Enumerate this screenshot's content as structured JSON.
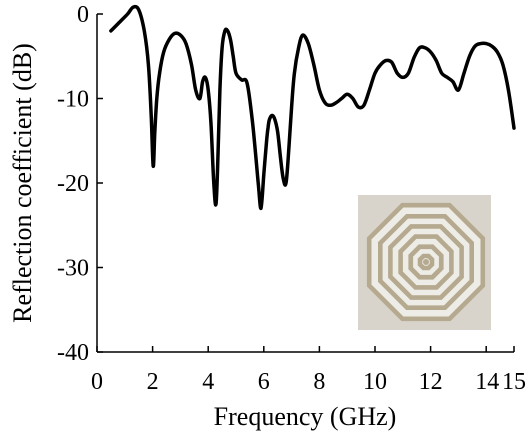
{
  "chart_data": {
    "type": "line",
    "title": "",
    "xlabel": "Frequency (GHz)",
    "ylabel": "Reflection coefficient (dB)",
    "xlim": [
      0,
      15
    ],
    "ylim": [
      -40,
      0
    ],
    "x_ticks": [
      0,
      2,
      4,
      6,
      8,
      10,
      12,
      14,
      15
    ],
    "x_tick_labels": [
      "0",
      "2",
      "4",
      "6",
      "8",
      "10",
      "12",
      "14",
      "15"
    ],
    "y_ticks": [
      0,
      -10,
      -20,
      -30,
      -40
    ],
    "y_tick_labels": [
      "0",
      "-10",
      "-20",
      "-30",
      "-40"
    ],
    "grid": false,
    "series": [
      {
        "line_color": "#000000",
        "x": [
          0.5,
          0.8,
          1.1,
          1.3,
          1.5,
          1.7,
          1.85,
          1.95,
          2.02,
          2.08,
          2.15,
          2.25,
          2.4,
          2.6,
          2.8,
          3.0,
          3.2,
          3.4,
          3.55,
          3.7,
          3.8,
          3.9,
          4.0,
          4.1,
          4.2,
          4.28,
          4.35,
          4.42,
          4.5,
          4.6,
          4.7,
          4.8,
          4.9,
          5.0,
          5.2,
          5.4,
          5.6,
          5.8,
          5.9,
          6.0,
          6.1,
          6.15,
          6.2,
          6.3,
          6.4,
          6.5,
          6.6,
          6.7,
          6.8,
          6.9,
          7.0,
          7.1,
          7.25,
          7.4,
          7.6,
          7.8,
          8.0,
          8.2,
          8.4,
          8.6,
          8.8,
          9.0,
          9.2,
          9.4,
          9.6,
          9.8,
          10.0,
          10.2,
          10.4,
          10.6,
          10.8,
          11.0,
          11.2,
          11.4,
          11.6,
          11.8,
          12.0,
          12.2,
          12.4,
          12.6,
          12.8,
          13.0,
          13.2,
          13.4,
          13.6,
          13.8,
          14.0,
          14.2,
          14.4,
          14.6,
          14.8,
          15.0
        ],
        "y": [
          -2,
          -1,
          0,
          0.8,
          0.5,
          -2,
          -6,
          -12,
          -18,
          -14,
          -10,
          -7,
          -4.5,
          -3,
          -2.3,
          -2.5,
          -3.5,
          -6,
          -9,
          -10,
          -8,
          -7.5,
          -9,
          -13,
          -20,
          -22.5,
          -17,
          -9,
          -4,
          -2,
          -2,
          -3,
          -5,
          -7,
          -7.8,
          -8.2,
          -13,
          -20,
          -23,
          -19,
          -15,
          -13.5,
          -12.5,
          -12,
          -12.5,
          -14,
          -17,
          -19.5,
          -20,
          -16,
          -11,
          -7,
          -4,
          -2.5,
          -3.5,
          -6,
          -9,
          -10.5,
          -10.8,
          -10.5,
          -10,
          -9.5,
          -10,
          -11,
          -10.8,
          -9,
          -7,
          -6,
          -5.5,
          -5.7,
          -7,
          -7.5,
          -7,
          -5.2,
          -4,
          -4,
          -4.5,
          -5.5,
          -7,
          -7.5,
          -8,
          -9,
          -7,
          -5,
          -3.8,
          -3.5,
          -3.5,
          -3.8,
          -4.5,
          -6,
          -9,
          -13.5
        ]
      }
    ],
    "inset": {
      "type": "photo",
      "subject": "octagonal concentric ring slot antenna",
      "background_color": "#d8d4cb",
      "ring_color": "#b5aa8f",
      "gap_color": "#eeece6"
    }
  }
}
